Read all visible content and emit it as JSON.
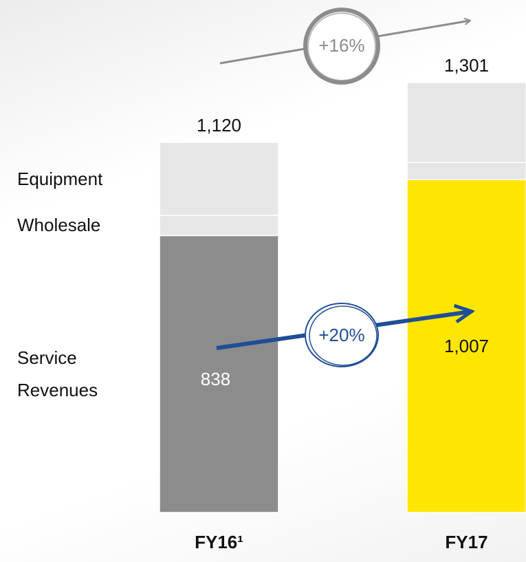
{
  "chart_data": {
    "type": "stacked-bar",
    "categories": [
      "FY16¹",
      "FY17"
    ],
    "series": [
      {
        "name": "Service Revenues",
        "colors": [
          "#8c8c8c",
          "#ffe600"
        ],
        "values": [
          838,
          1007
        ],
        "value_labels": [
          "838",
          "1,007"
        ],
        "label_colors": [
          "#ffffff",
          "#111111"
        ]
      },
      {
        "name": "Wholesale",
        "color": "#e6e6e6",
        "values": [
          61,
          52
        ]
      },
      {
        "name": "Equipment",
        "color": "#e6e6e6",
        "values": [
          221,
          242
        ]
      }
    ],
    "totals": [
      1120,
      1301
    ],
    "total_labels": [
      "1,120",
      "1,301"
    ],
    "annotations": [
      {
        "text": "+16%",
        "color": "#8c8c8c",
        "text_color": "#8c8c8c"
      },
      {
        "text": "+20%",
        "color": "#1f4e96",
        "text_color": "#1f4e96"
      }
    ]
  }
}
